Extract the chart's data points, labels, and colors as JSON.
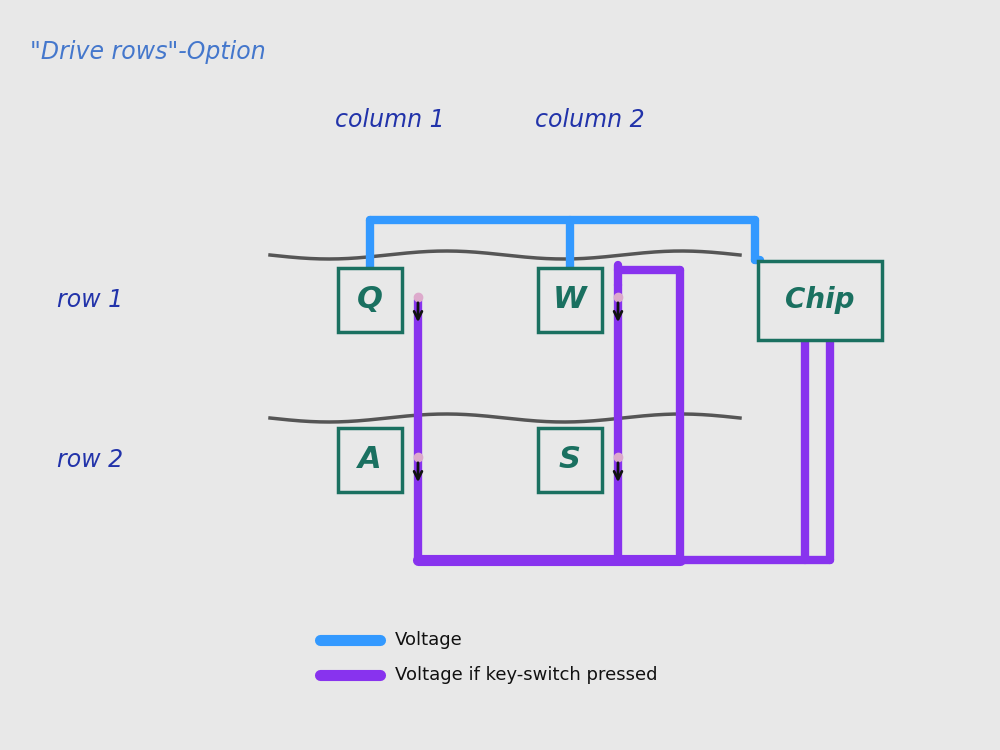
{
  "bg_color": "#e8e8e8",
  "title": "\"Drive rows\"-Option",
  "title_color": "#4477cc",
  "title_fontsize": 17,
  "col1_label": "column 1",
  "col2_label": "column 2",
  "row1_label": "row 1",
  "row2_label": "row 2",
  "label_color": "#2233aa",
  "label_fontsize": 17,
  "key_color": "#1a7060",
  "key_fontsize": 22,
  "chip_color": "#1a7060",
  "chip_fontsize": 20,
  "blue_color": "#3399ff",
  "purple_color": "#8833ee",
  "wire_color": "#555555",
  "arrow_color": "#111111",
  "legend_items": [
    {
      "color": "#3399ff",
      "label": "Voltage"
    },
    {
      "color": "#8833ee",
      "label": "Voltage if key-switch pressed"
    }
  ]
}
